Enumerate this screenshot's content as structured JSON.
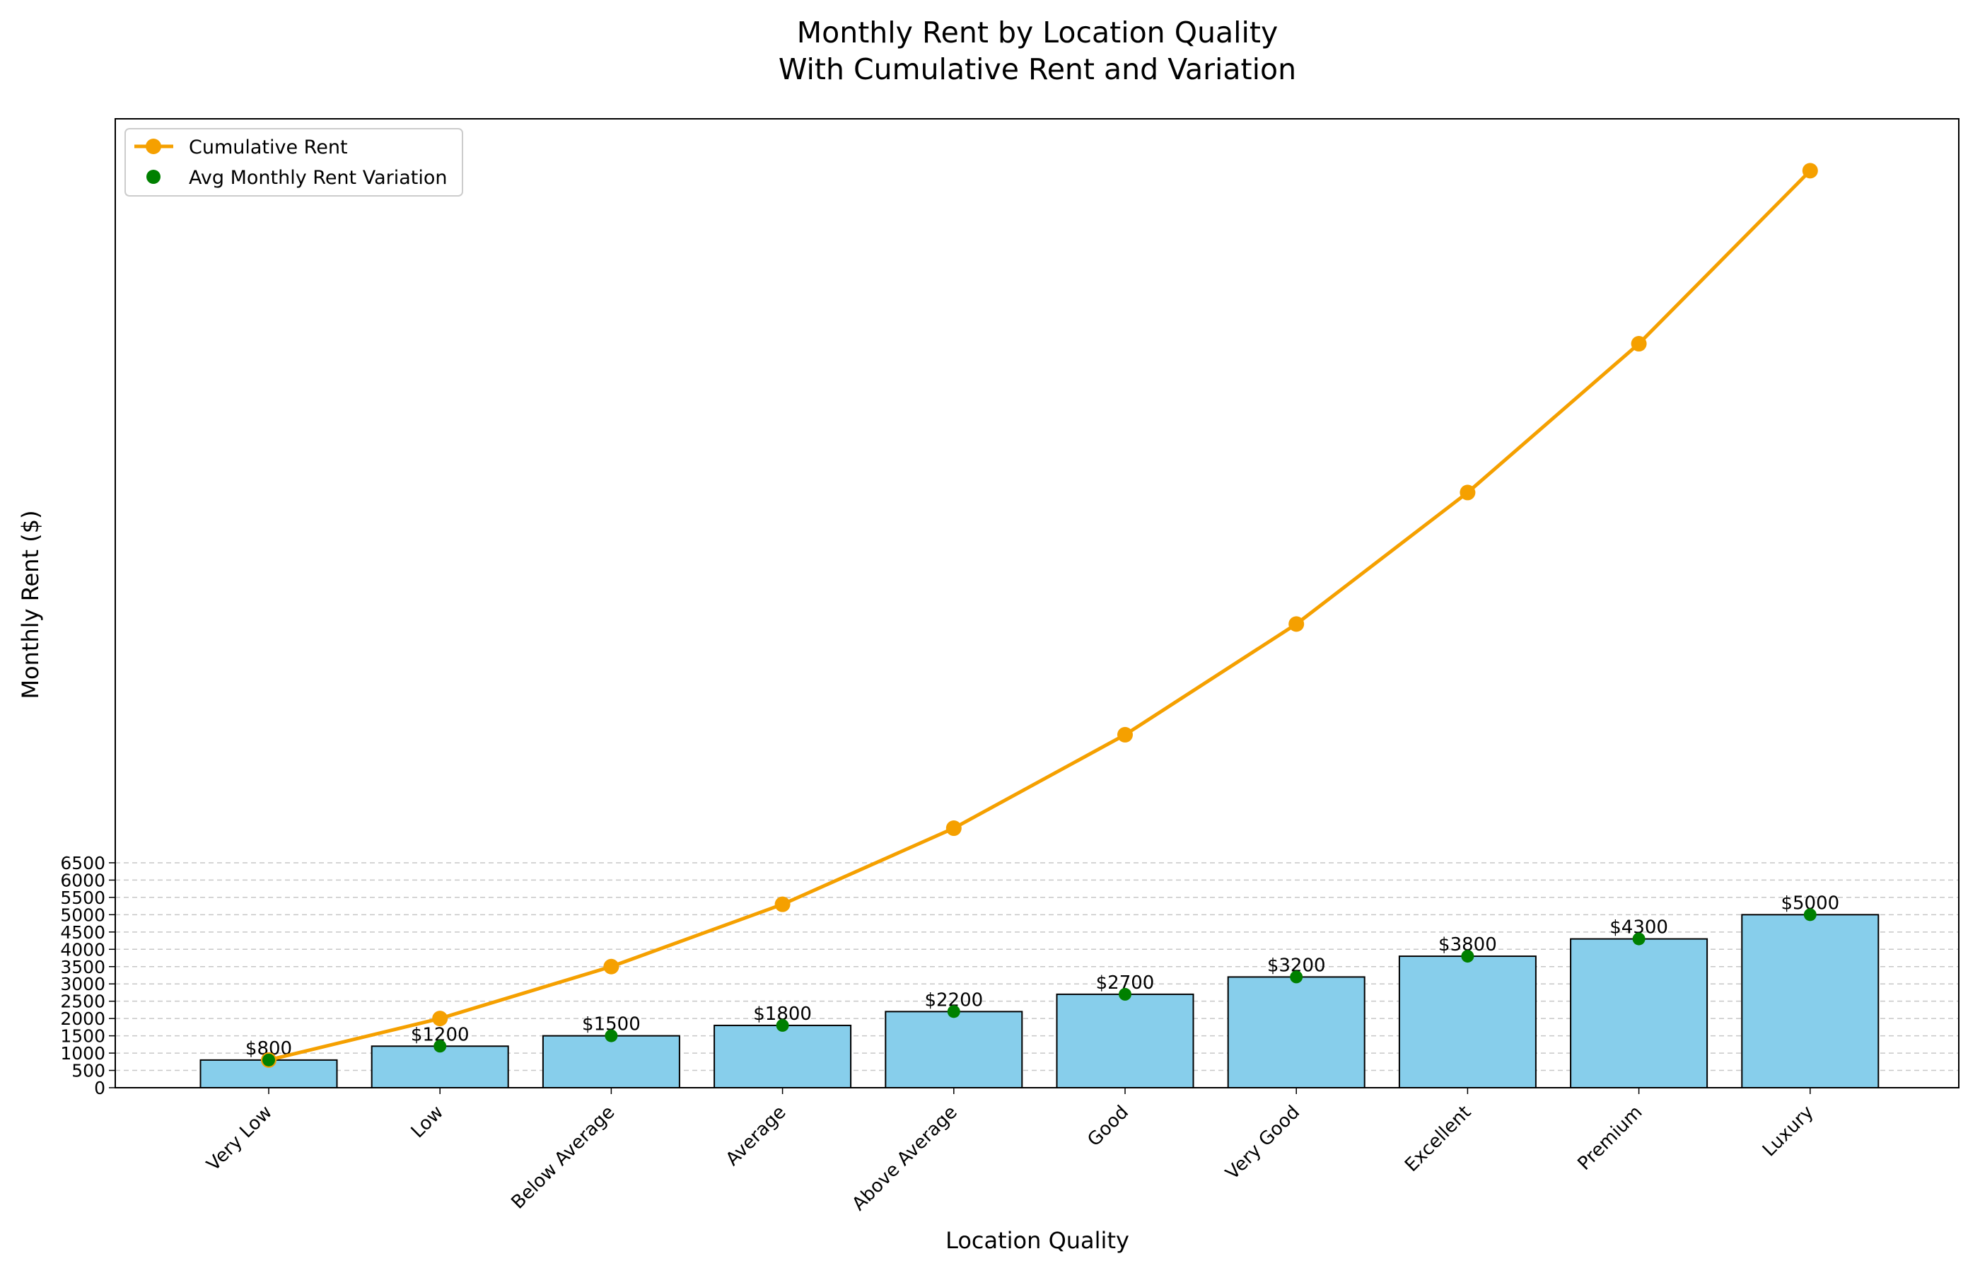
{
  "chart_data": {
    "type": "bar",
    "title_line1": "Monthly Rent by Location Quality",
    "title_line2": "With Cumulative Rent and Variation",
    "xlabel": "Location Quality",
    "ylabel": "Monthly Rent ($)",
    "ylim": [
      0,
      28000
    ],
    "yticks": [
      0,
      500,
      1000,
      1500,
      2000,
      2500,
      3000,
      3500,
      4000,
      4500,
      5000,
      5500,
      6000,
      6500
    ],
    "categories": [
      "Very Low",
      "Low",
      "Below Average",
      "Average",
      "Above Average",
      "Good",
      "Very Good",
      "Excellent",
      "Premium",
      "Luxury"
    ],
    "series": [
      {
        "name": "Monthly Rent",
        "kind": "bar",
        "color": "#87ceeb",
        "values": [
          800,
          1200,
          1500,
          1800,
          2200,
          2700,
          3200,
          3800,
          4300,
          5000
        ],
        "labels": [
          "$800",
          "$1200",
          "$1500",
          "$1800",
          "$2200",
          "$2700",
          "$3200",
          "$3800",
          "$4300",
          "$5000"
        ]
      },
      {
        "name": "Cumulative Rent",
        "kind": "line",
        "color": "#f5a000",
        "values": [
          800,
          2000,
          3500,
          5300,
          7500,
          10200,
          13400,
          17200,
          21500,
          26500
        ]
      },
      {
        "name": "Avg Monthly Rent Variation",
        "kind": "scatter",
        "color": "#008000",
        "values": [
          800,
          1200,
          1500,
          1800,
          2200,
          2700,
          3200,
          3800,
          4300,
          5000
        ]
      }
    ],
    "legend": {
      "position": "top-left",
      "entries": [
        "Cumulative Rent",
        "Avg Monthly Rent Variation"
      ]
    },
    "grid": "y-dashed"
  }
}
